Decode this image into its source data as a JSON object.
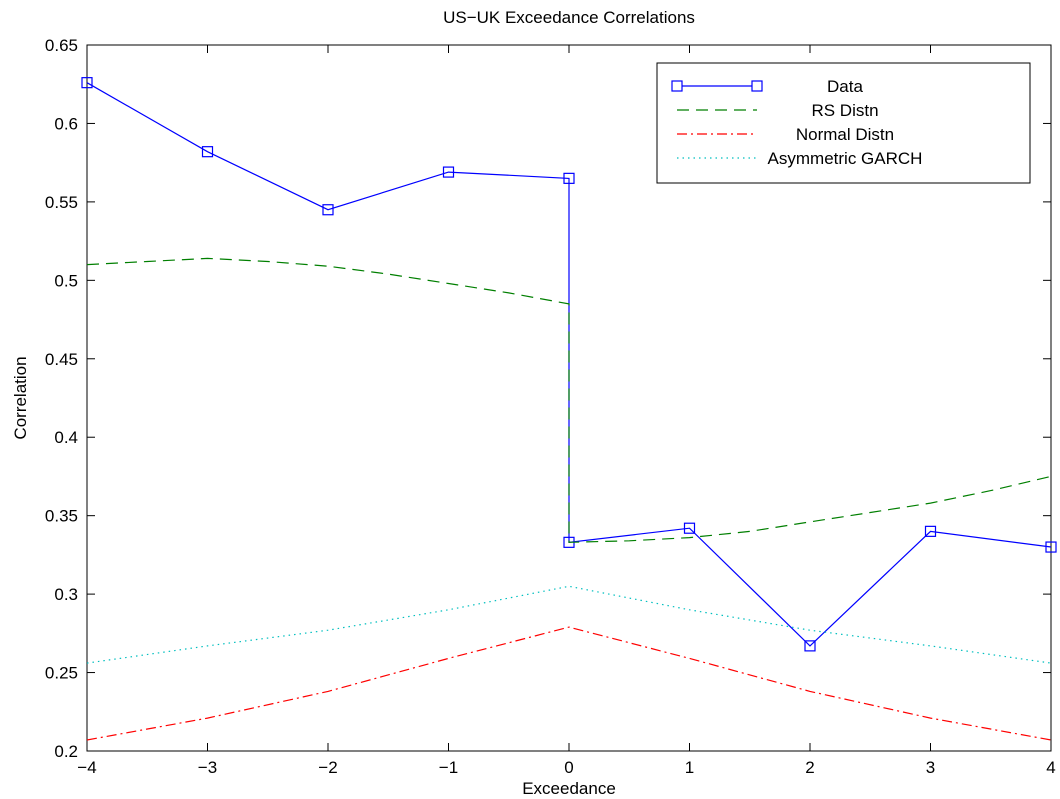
{
  "chart_data": {
    "type": "line",
    "title": "US−UK Exceedance Correlations",
    "xlabel": "Exceedance",
    "ylabel": "Correlation",
    "xlim": [
      -4,
      4
    ],
    "ylim": [
      0.2,
      0.65
    ],
    "xticks": [
      -4,
      -3,
      -2,
      -1,
      0,
      1,
      2,
      3,
      4
    ],
    "xtick_labels": [
      "−4",
      "−3",
      "−2",
      "−1",
      "0",
      "1",
      "2",
      "3",
      "4"
    ],
    "yticks": [
      0.2,
      0.25,
      0.3,
      0.35,
      0.4,
      0.45,
      0.5,
      0.55,
      0.6,
      0.65
    ],
    "ytick_labels": [
      "0.2",
      "0.25",
      "0.3",
      "0.35",
      "0.4",
      "0.45",
      "0.5",
      "0.55",
      "0.6",
      "0.65"
    ],
    "grid": false,
    "legend_position": "top-right",
    "series": [
      {
        "name": "Data",
        "color": "#0000ff",
        "style": "solid",
        "marker": "square",
        "x": [
          -4,
          -3,
          -2,
          -1,
          0,
          0,
          1,
          2,
          3,
          4
        ],
        "y": [
          0.626,
          0.582,
          0.545,
          0.569,
          0.565,
          0.333,
          0.342,
          0.267,
          0.34,
          0.33
        ]
      },
      {
        "name": "RS Distn",
        "color": "#007f00",
        "style": "dashed",
        "marker": "none",
        "x": [
          -4,
          -3.5,
          -3,
          -2.5,
          -2,
          -1.5,
          -1,
          -0.5,
          0,
          0,
          0.5,
          1,
          1.5,
          2,
          2.5,
          3,
          3.5,
          4
        ],
        "y": [
          0.51,
          0.512,
          0.514,
          0.512,
          0.509,
          0.504,
          0.498,
          0.492,
          0.485,
          0.333,
          0.334,
          0.336,
          0.34,
          0.346,
          0.352,
          0.358,
          0.366,
          0.375
        ]
      },
      {
        "name": "Normal Distn",
        "color": "#ff0000",
        "style": "dashdot",
        "marker": "none",
        "x": [
          -4,
          -3,
          -2,
          -1,
          0,
          1,
          2,
          3,
          4
        ],
        "y": [
          0.207,
          0.221,
          0.238,
          0.259,
          0.279,
          0.259,
          0.238,
          0.221,
          0.207
        ]
      },
      {
        "name": "Asymmetric GARCH",
        "color": "#00bfbf",
        "style": "dotted",
        "marker": "none",
        "x": [
          -4,
          -3,
          -2,
          -1,
          0,
          1,
          2,
          3,
          4
        ],
        "y": [
          0.256,
          0.267,
          0.277,
          0.29,
          0.305,
          0.29,
          0.277,
          0.267,
          0.256
        ]
      }
    ]
  }
}
